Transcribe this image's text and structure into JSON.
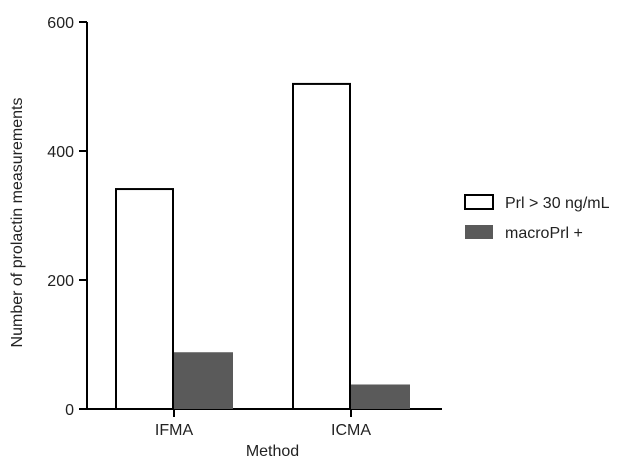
{
  "chart_data": {
    "type": "bar",
    "categories": [
      "IFMA",
      "ICMA"
    ],
    "series": [
      {
        "name": "Prl > 30 ng/mL",
        "values": [
          341,
          504
        ],
        "fill": "#ffffff",
        "stroke": "#000000"
      },
      {
        "name": "macroPrl +",
        "values": [
          88,
          38
        ],
        "fill": "#5a5a5a",
        "stroke": "#5a5a5a"
      }
    ],
    "xlabel": "Method",
    "ylabel": "Number of prolactin measurements",
    "ylim": [
      0,
      600
    ],
    "yticks": [
      0,
      200,
      400,
      600
    ],
    "grid": false,
    "legend_position": "right"
  }
}
